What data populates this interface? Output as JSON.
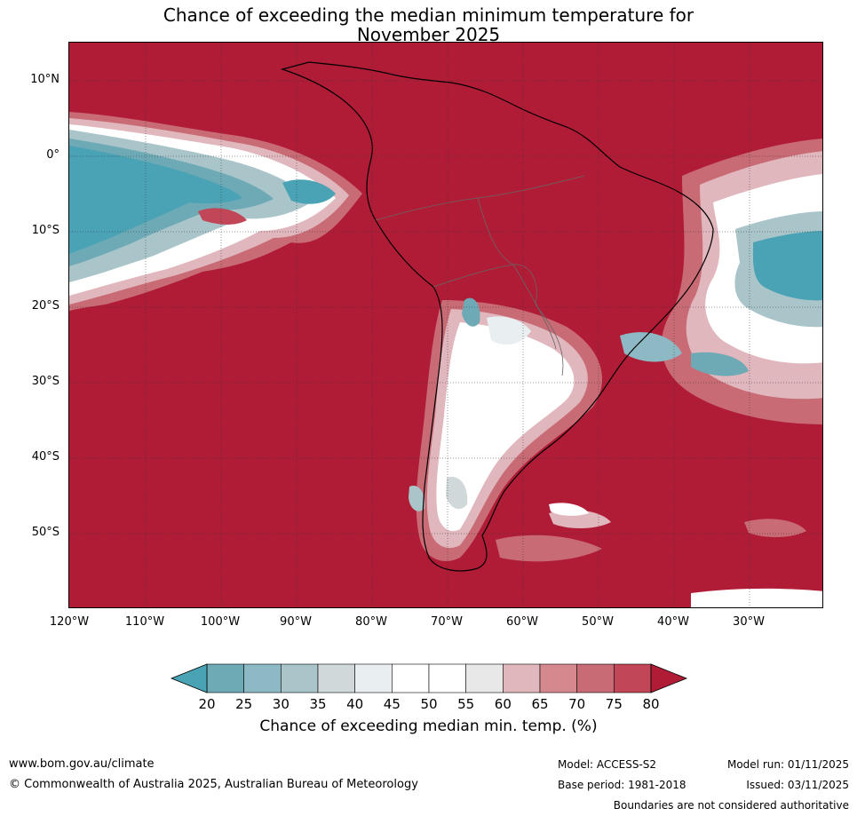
{
  "title_line1": "Chance of exceeding the median minimum temperature for",
  "title_line2": "November 2025",
  "map": {
    "lat_labels": [
      "10°N",
      "0°",
      "10°S",
      "20°S",
      "30°S",
      "40°S",
      "50°S"
    ],
    "lon_labels": [
      "120°W",
      "110°W",
      "100°W",
      "90°W",
      "80°W",
      "70°W",
      "60°W",
      "50°W",
      "40°W",
      "30°W"
    ]
  },
  "colorbar": {
    "ticks": [
      "20",
      "25",
      "30",
      "35",
      "40",
      "45",
      "50",
      "55",
      "60",
      "65",
      "70",
      "75",
      "80"
    ],
    "colors": [
      "#4aa3b5",
      "#6eaab6",
      "#8cb9c4",
      "#aac5ca",
      "#d0d8da",
      "#e9eff1",
      "#ffffff",
      "#ffffff",
      "#e8e8e8",
      "#e1b7be",
      "#d5898f",
      "#c86b75",
      "#c04658",
      "#b01c36"
    ],
    "label": "Chance of exceeding median min. temp. (%)"
  },
  "footer": {
    "website": "www.bom.gov.au/climate",
    "copyright": "© Commonwealth of Australia 2025, Australian Bureau of Meteorology",
    "model": "Model: ACCESS-S2",
    "base_period": "Base period: 1981-2018",
    "model_run": "Model run: 01/11/2025",
    "issued": "Issued: 03/11/2025",
    "disclaimer": "Boundaries are not considered authoritative"
  }
}
